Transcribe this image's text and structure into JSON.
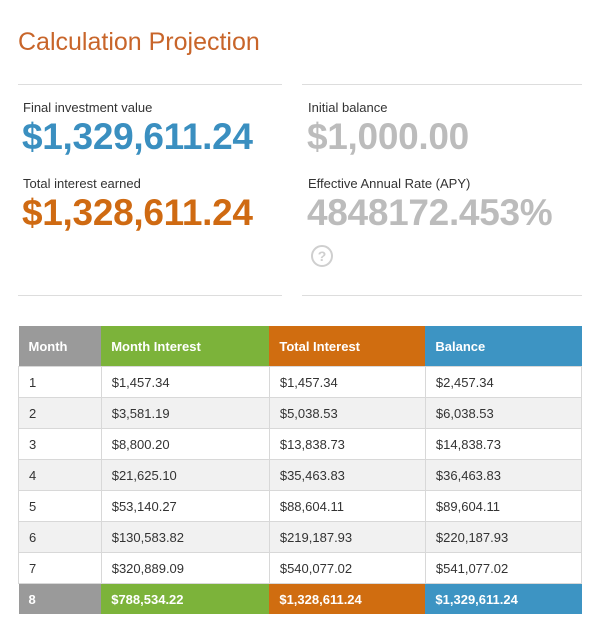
{
  "header": {
    "title": "Calculation Projection"
  },
  "summary": {
    "final_label": "Final investment value",
    "final_value": "$1,329,611.24",
    "interest_label": "Total interest earned",
    "interest_value": "$1,328,611.24",
    "initial_label": "Initial balance",
    "initial_value": "$1,000.00",
    "apy_label": "Effective Annual Rate (APY)",
    "apy_value": "4848172.453%",
    "help": "?"
  },
  "table": {
    "columns": [
      "Month",
      "Month Interest",
      "Total Interest",
      "Balance"
    ],
    "rows": [
      [
        "1",
        "$1,457.34",
        "$1,457.34",
        "$2,457.34"
      ],
      [
        "2",
        "$3,581.19",
        "$5,038.53",
        "$6,038.53"
      ],
      [
        "3",
        "$8,800.20",
        "$13,838.73",
        "$14,838.73"
      ],
      [
        "4",
        "$21,625.10",
        "$35,463.83",
        "$36,463.83"
      ],
      [
        "5",
        "$53,140.27",
        "$88,604.11",
        "$89,604.11"
      ],
      [
        "6",
        "$130,583.82",
        "$219,187.93",
        "$220,187.93"
      ],
      [
        "7",
        "$320,889.09",
        "$540,077.02",
        "$541,077.02"
      ],
      [
        "8",
        "$788,534.22",
        "$1,328,611.24",
        "$1,329,611.24"
      ]
    ]
  }
}
